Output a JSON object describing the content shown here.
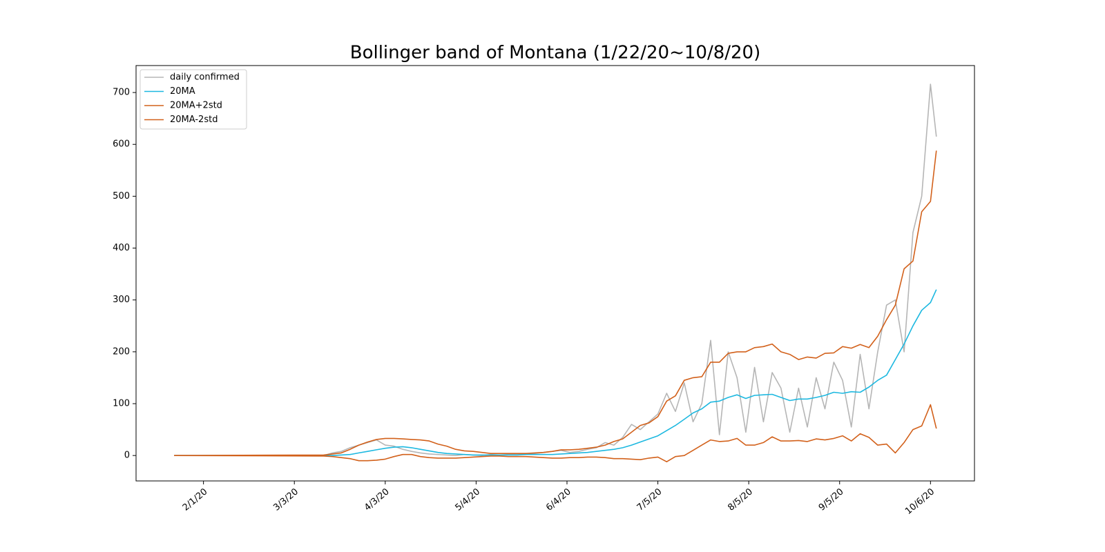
{
  "chart_data": {
    "type": "line",
    "title": "Bollinger band of Montana (1/22/20~10/8/20)",
    "x": [
      "1/22/20",
      "3/13/20",
      "3/16/20",
      "3/19/20",
      "3/22/20",
      "3/25/20",
      "3/28/20",
      "3/31/20",
      "4/3/20",
      "4/6/20",
      "4/9/20",
      "4/12/20",
      "4/15/20",
      "4/18/20",
      "4/21/20",
      "4/24/20",
      "4/27/20",
      "4/30/20",
      "5/3/20",
      "5/6/20",
      "5/9/20",
      "5/12/20",
      "5/15/20",
      "5/18/20",
      "5/21/20",
      "5/24/20",
      "5/27/20",
      "5/30/20",
      "6/2/20",
      "6/5/20",
      "6/8/20",
      "6/11/20",
      "6/14/20",
      "6/17/20",
      "6/20/20",
      "6/23/20",
      "6/26/20",
      "6/29/20",
      "7/2/20",
      "7/5/20",
      "7/8/20",
      "7/11/20",
      "7/14/20",
      "7/17/20",
      "7/20/20",
      "7/23/20",
      "7/26/20",
      "7/29/20",
      "8/1/20",
      "8/4/20",
      "8/7/20",
      "8/10/20",
      "8/13/20",
      "8/16/20",
      "8/19/20",
      "8/22/20",
      "8/25/20",
      "8/28/20",
      "8/31/20",
      "9/3/20",
      "9/6/20",
      "9/9/20",
      "9/12/20",
      "9/15/20",
      "9/18/20",
      "9/21/20",
      "9/24/20",
      "9/27/20",
      "9/30/20",
      "10/3/20",
      "10/6/20",
      "10/8/20"
    ],
    "series": [
      {
        "name": "daily confirmed",
        "color": "#b5b5b5",
        "values": [
          0,
          0,
          5,
          8,
          15,
          20,
          25,
          30,
          20,
          18,
          12,
          8,
          5,
          3,
          2,
          1,
          0,
          2,
          1,
          0,
          2,
          1,
          2,
          3,
          2,
          4,
          6,
          8,
          10,
          6,
          8,
          12,
          15,
          25,
          20,
          35,
          60,
          50,
          65,
          80,
          120,
          85,
          140,
          65,
          100,
          222,
          40,
          200,
          150,
          45,
          170,
          65,
          160,
          130,
          45,
          130,
          55,
          150,
          90,
          180,
          145,
          55,
          195,
          90,
          200,
          290,
          300,
          200,
          430,
          500,
          716,
          615
        ]
      },
      {
        "name": "20MA",
        "color": "#1cb8e0",
        "values": [
          0,
          0,
          0,
          1,
          2,
          5,
          8,
          11,
          14,
          16,
          17,
          15,
          12,
          9,
          6,
          4,
          3,
          2,
          1,
          1,
          1,
          1,
          1,
          1,
          2,
          2,
          2,
          2,
          3,
          4,
          5,
          6,
          8,
          10,
          12,
          15,
          20,
          26,
          32,
          38,
          48,
          58,
          70,
          82,
          90,
          103,
          105,
          112,
          117,
          110,
          116,
          117,
          118,
          112,
          106,
          109,
          109,
          112,
          116,
          122,
          120,
          123,
          122,
          132,
          145,
          155,
          185,
          215,
          250,
          280,
          295,
          320
        ]
      },
      {
        "name": "20MA+2std",
        "color": "#d2601a",
        "values": [
          0,
          1,
          3,
          5,
          12,
          20,
          26,
          31,
          33,
          33,
          32,
          31,
          30,
          28,
          22,
          18,
          12,
          9,
          8,
          6,
          4,
          4,
          4,
          4,
          4,
          5,
          6,
          8,
          11,
          11,
          12,
          14,
          16,
          20,
          27,
          32,
          45,
          58,
          63,
          75,
          105,
          115,
          145,
          150,
          152,
          180,
          180,
          197,
          200,
          200,
          208,
          210,
          215,
          200,
          195,
          185,
          190,
          188,
          197,
          198,
          210,
          207,
          214,
          208,
          230,
          262,
          290,
          360,
          375,
          470,
          490,
          588
        ]
      },
      {
        "name": "20MA-2std",
        "color": "#d2601a",
        "values": [
          0,
          -1,
          -2,
          -4,
          -6,
          -10,
          -10,
          -9,
          -7,
          -2,
          2,
          2,
          -2,
          -4,
          -5,
          -5,
          -5,
          -4,
          -3,
          -2,
          -1,
          -1,
          -2,
          -2,
          -2,
          -3,
          -4,
          -5,
          -5,
          -4,
          -4,
          -3,
          -3,
          -4,
          -6,
          -6,
          -7,
          -8,
          -5,
          -3,
          -12,
          -2,
          0,
          10,
          20,
          30,
          27,
          28,
          33,
          20,
          20,
          25,
          36,
          28,
          28,
          29,
          27,
          32,
          30,
          33,
          38,
          28,
          42,
          35,
          20,
          22,
          5,
          25,
          50,
          57,
          98,
          52
        ]
      }
    ],
    "xlim": [
      "1/9/20",
      "10/21/20"
    ],
    "xticks": [
      "2/1/20",
      "3/3/20",
      "4/3/20",
      "5/4/20",
      "6/4/20",
      "7/5/20",
      "8/5/20",
      "9/5/20",
      "10/6/20"
    ],
    "ylim": [
      -49,
      752
    ],
    "yticks": [
      0,
      100,
      200,
      300,
      400,
      500,
      600,
      700
    ],
    "grid": false,
    "legend": "upper left"
  }
}
